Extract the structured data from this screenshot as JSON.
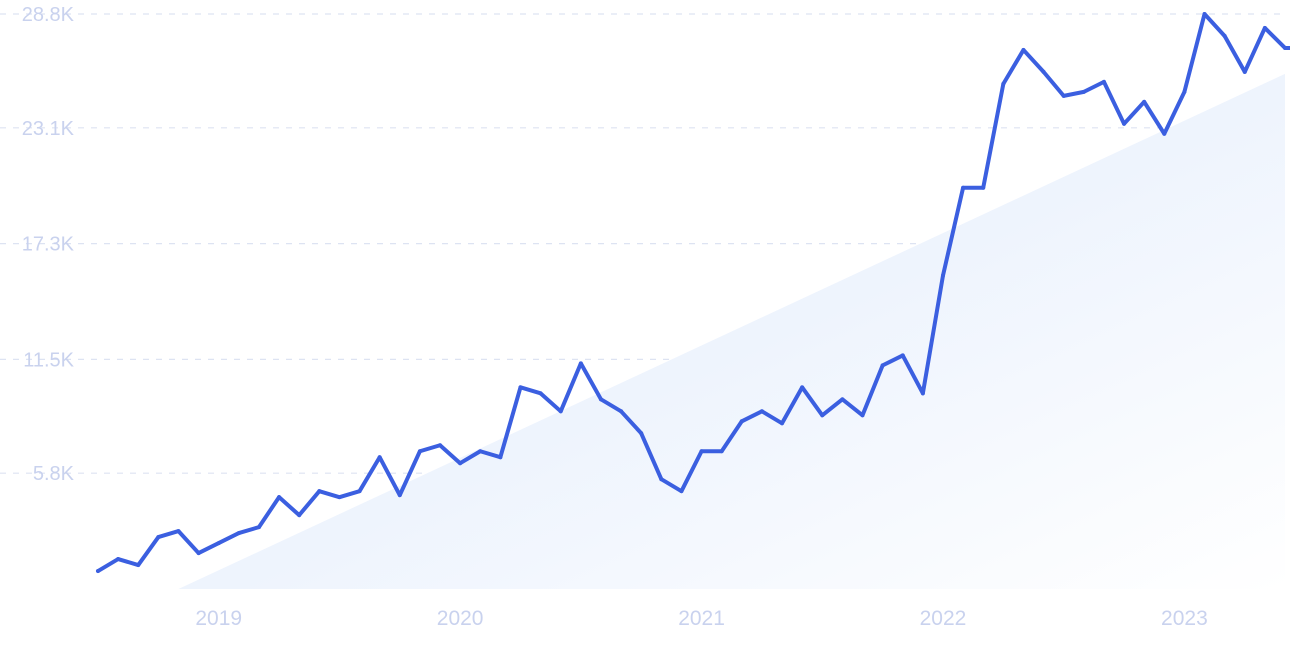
{
  "colors": {
    "line": "#3b5fe0",
    "grid": "#dde3f2",
    "tick_text": "#c9d2ee",
    "trend_fill_start": "#dce8fb",
    "trend_fill_end": "#ffffff"
  },
  "chart_data": {
    "type": "line",
    "title": "",
    "xlabel": "",
    "ylabel": "",
    "y_ticks": [
      "5.8K",
      "11.5K",
      "17.3K",
      "23.1K",
      "28.8K"
    ],
    "y_tick_values": [
      5800,
      11500,
      17300,
      23100,
      28800
    ],
    "ylim": [
      0,
      28800
    ],
    "x_ticks": [
      "2019",
      "2020",
      "2021",
      "2022",
      "2023"
    ],
    "grid": true,
    "legend": "none",
    "xlim": [
      "2018-07",
      "2023-06"
    ],
    "series": [
      {
        "x": [
          "2018-07",
          "2018-08",
          "2018-09",
          "2018-10",
          "2018-11",
          "2018-12",
          "2019-01",
          "2019-02",
          "2019-03",
          "2019-04",
          "2019-05",
          "2019-06",
          "2019-07",
          "2019-08",
          "2019-09",
          "2019-10",
          "2019-11",
          "2019-12",
          "2020-01",
          "2020-02",
          "2020-03",
          "2020-04",
          "2020-05",
          "2020-06",
          "2020-07",
          "2020-08",
          "2020-09",
          "2020-10",
          "2020-11",
          "2020-12",
          "2021-01",
          "2021-02",
          "2021-03",
          "2021-04",
          "2021-05",
          "2021-06",
          "2021-07",
          "2021-08",
          "2021-09",
          "2021-10",
          "2021-11",
          "2021-12",
          "2022-01",
          "2022-02",
          "2022-03",
          "2022-04",
          "2022-05",
          "2022-06",
          "2022-07",
          "2022-08",
          "2022-09",
          "2022-10",
          "2022-11",
          "2022-12",
          "2023-01",
          "2023-02",
          "2023-03",
          "2023-04",
          "2023-05",
          "2023-06",
          "2023-07"
        ],
        "values": [
          900,
          1500,
          1200,
          2600,
          2900,
          1800,
          2300,
          2800,
          3100,
          4600,
          3700,
          4900,
          4600,
          4900,
          6600,
          4700,
          6900,
          7200,
          6300,
          6900,
          6600,
          10100,
          9800,
          8900,
          11300,
          9500,
          8900,
          7800,
          5500,
          4900,
          6900,
          6900,
          8400,
          8900,
          8300,
          10100,
          8700,
          9500,
          8700,
          11200,
          11700,
          9800,
          15700,
          20100,
          20100,
          25300,
          27000,
          25900,
          24700,
          24900,
          25400,
          23300,
          24400,
          22800,
          24900,
          28800,
          27700,
          25900,
          28100,
          27100,
          27100
        ]
      }
    ],
    "trend": {
      "x": [
        "2018-11",
        "2023-06"
      ],
      "values": [
        0,
        25800
      ]
    }
  }
}
